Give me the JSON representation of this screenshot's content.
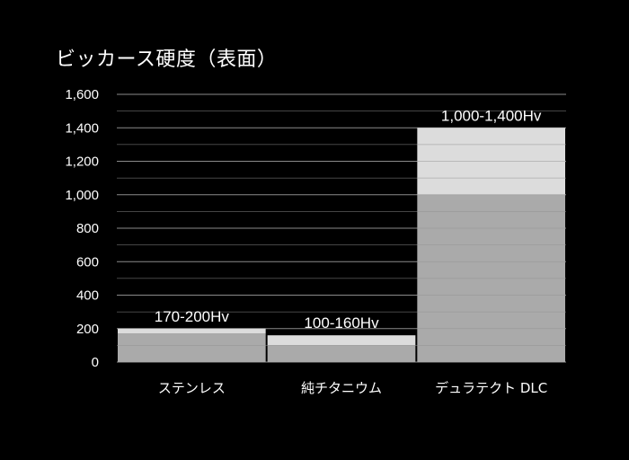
{
  "chart_data": {
    "type": "bar",
    "title": "ビッカース硬度（表面）",
    "xlabel": "",
    "ylabel": "",
    "ylim": [
      0,
      1600
    ],
    "yticks": [
      0,
      200,
      400,
      600,
      800,
      1000,
      1200,
      1400,
      1600
    ],
    "ytick_labels": [
      "0",
      "200",
      "400",
      "600",
      "800",
      "1,000",
      "1,200",
      "1,400",
      "1,600"
    ],
    "grid": true,
    "categories": [
      "ステンレス",
      "純チタニウム",
      "デュラテクト DLC"
    ],
    "ranges": [
      {
        "low": 170,
        "high": 200,
        "label": "170-200Hv"
      },
      {
        "low": 100,
        "high": 160,
        "label": "100-160Hv"
      },
      {
        "low": 1000,
        "high": 1400,
        "label": "1,000-1,400Hv"
      }
    ],
    "colors": {
      "background": "#000000",
      "bar_base": "#aaaaaa",
      "bar_range": "#dcdcdc",
      "grid": "#8a8a8a",
      "text": "#ffffff"
    }
  }
}
